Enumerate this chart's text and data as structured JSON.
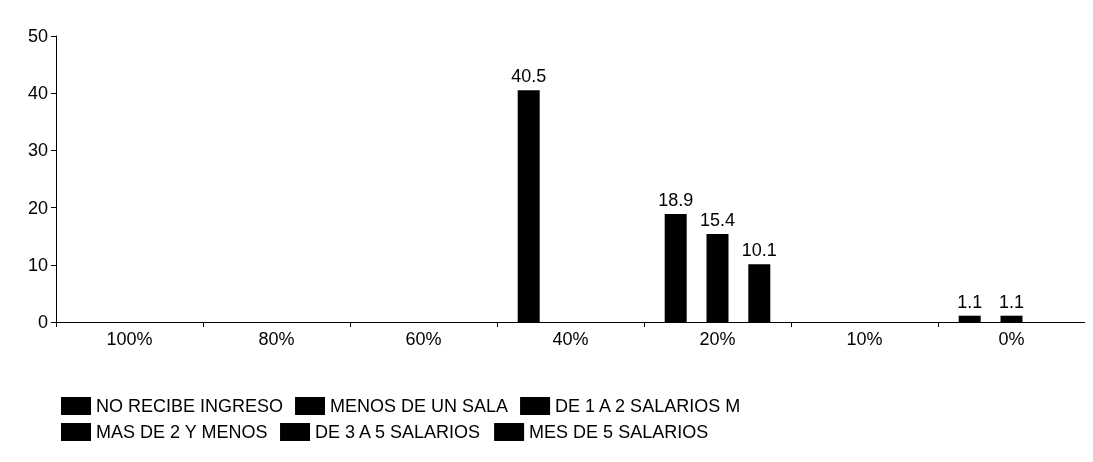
{
  "chart_data": {
    "type": "bar",
    "categories": [
      "100%",
      "80%",
      "60%",
      "40%",
      "20%",
      "10%",
      "0%"
    ],
    "series": [
      {
        "name": "NO RECIBE INGRESO",
        "color": "#000000",
        "values": [
          null,
          null,
          null,
          40.5,
          null,
          null,
          null
        ]
      },
      {
        "name": "MENOS DE UN SALA",
        "color": "#000000",
        "values": [
          null,
          null,
          null,
          null,
          18.9,
          null,
          null
        ]
      },
      {
        "name": "DE 1 A 2 SALARIOS M",
        "color": "#000000",
        "values": [
          null,
          null,
          null,
          null,
          15.4,
          null,
          null
        ]
      },
      {
        "name": "MAS DE 2 Y MENOS",
        "color": "#000000",
        "values": [
          null,
          null,
          null,
          null,
          10.1,
          null,
          null
        ]
      },
      {
        "name": "DE 3 A 5 SALARIOS",
        "color": "#000000",
        "values": [
          null,
          null,
          null,
          null,
          null,
          null,
          1.1
        ]
      },
      {
        "name": "MES DE 5 SALARIOS",
        "color": "#000000",
        "values": [
          null,
          null,
          null,
          null,
          null,
          null,
          1.1
        ]
      }
    ],
    "ylim": [
      0,
      50
    ],
    "yticks": [
      0,
      10,
      20,
      30,
      40,
      50
    ],
    "data_labels": true,
    "legend": "bottom",
    "grid": false
  }
}
